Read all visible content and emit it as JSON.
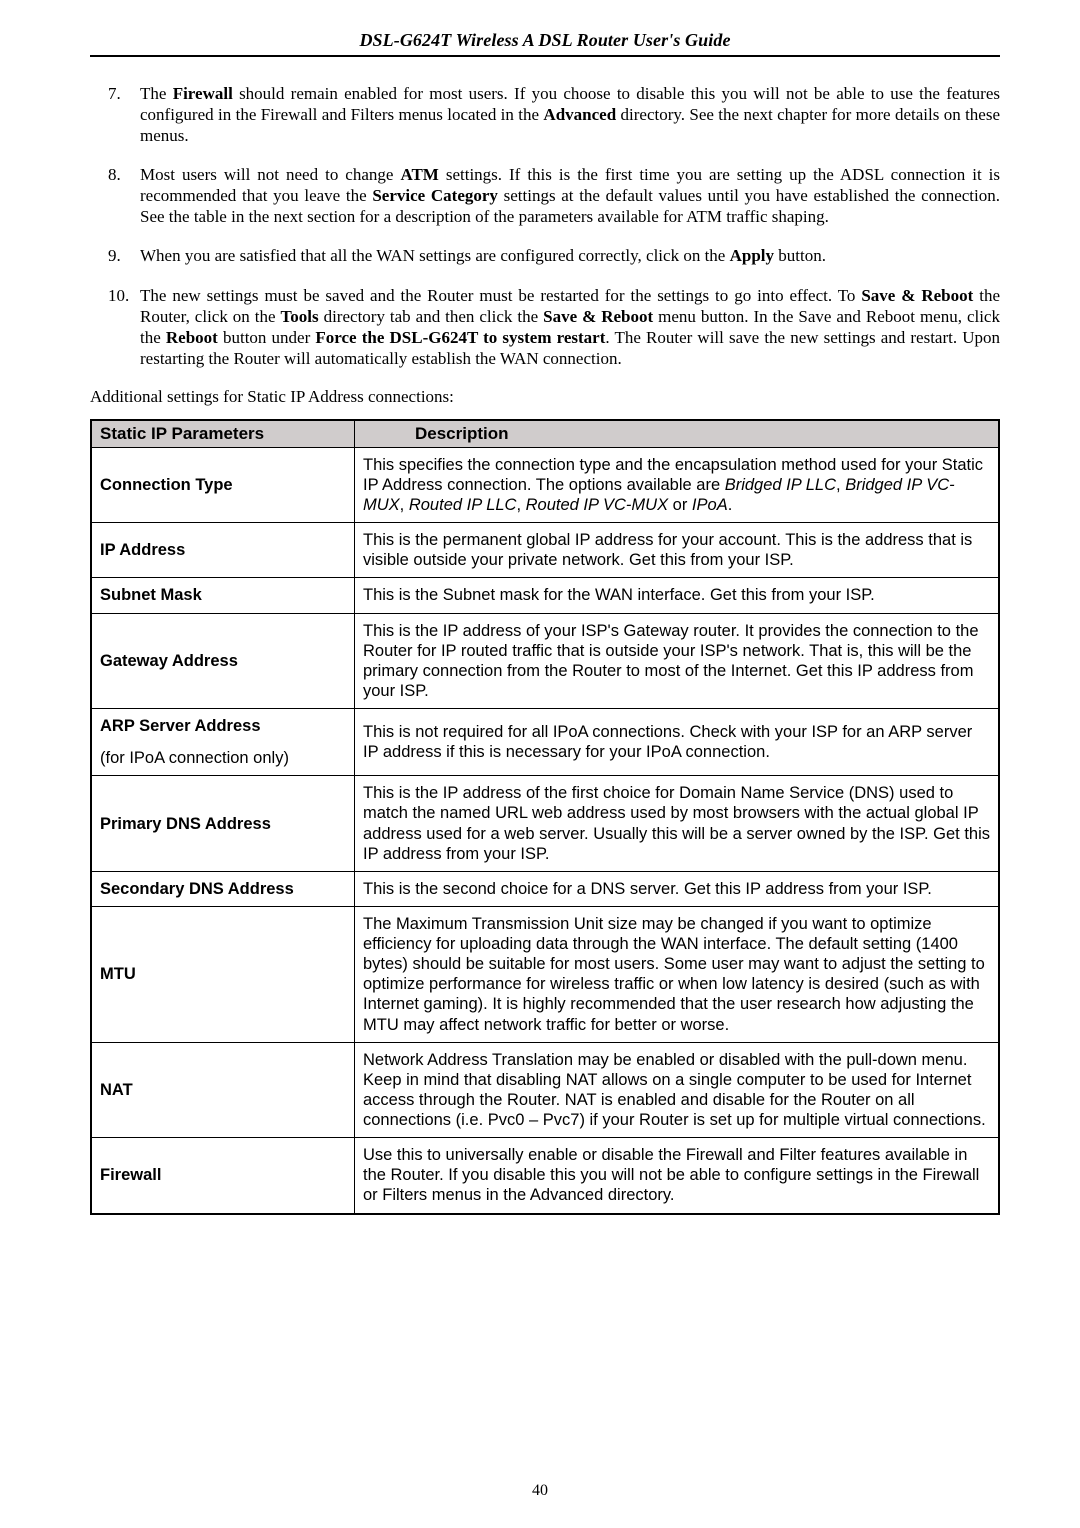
{
  "header": {
    "title": "DSL-G624T Wireless A DSL Router User's Guide"
  },
  "list": {
    "items": [
      {
        "html": "The <b>Firewall</b> should remain enabled for most users. If you choose to disable this you will not be able to use the features configured in the Firewall and Filters menus located in the <b>Advanced</b> directory. See the next chapter for more details on these menus."
      },
      {
        "html": "Most users will not need to change <b>ATM</b> settings. If this is the first time you are setting up the ADSL connection it is recommended that you leave the <b>Service Category</b> settings at the default values until you have established the connection. See the table in the next section for a description of the parameters available for ATM traffic shaping."
      },
      {
        "html": "When you are satisfied that all the WAN settings are configured correctly, click on the <b>Apply</b> button."
      },
      {
        "html": "The new settings must be saved and the Router must be restarted for the settings to go into effect. To <b>Save &amp; Reboot</b> the Router, click on the <b>Tools</b> directory tab and then click the <b>Save &amp; Reboot</b> menu button. In the Save and Reboot menu, click the <b>Reboot</b> button under <b>Force the DSL-G624T to system restart</b>. The Router will save the new settings and restart. Upon restarting the Router will automatically establish the WAN connection."
      }
    ]
  },
  "intro": "Additional settings for Static IP Address connections:",
  "table": {
    "header": {
      "c1": "Static IP Parameters",
      "c2": "Description"
    },
    "rows": [
      {
        "label": "Connection Type",
        "desc_html": "This specifies the connection type and the encapsulation method used for your Static IP Address connection. The options available are <span class='ital'>Bridged IP LLC</span>, <span class='ital'>Bridged IP VC-MUX</span>, <span class='ital'>Routed IP LLC</span>, <span class='ital'>Routed IP VC-MUX</span> or <span class='ital'>IPoA</span>."
      },
      {
        "label": "IP Address",
        "desc_html": "This is the permanent global IP address for your account. This is the address that is visible outside your private network. Get this from your ISP."
      },
      {
        "label": "Subnet Mask",
        "desc_html": "This is the Subnet mask for the WAN interface. Get this from your ISP."
      },
      {
        "label": "Gateway Address",
        "desc_html": "This is the IP address of your ISP's Gateway router. It provides the connection to the Router for IP routed traffic that is outside your ISP's network. That is, this will be the primary connection from the Router to most of the Internet. Get this IP address from your ISP."
      },
      {
        "label_html": "<span>ARP Server Address</span><span class='sub'>(for IPoA connection only)</span>",
        "desc_html": "This is not required for all IPoA connections. Check with your ISP for an ARP server IP address if this is necessary for your IPoA connection."
      },
      {
        "label": "Primary DNS Address",
        "desc_html": "This is the IP address of the first choice for Domain Name Service (DNS) used to match the named URL web address used by most browsers with the actual global IP address used for a web server. Usually this will be a server owned by the ISP. Get this IP address from your ISP."
      },
      {
        "label": "Secondary DNS Address",
        "desc_html": "This is the second choice for a DNS server. Get this IP address from your ISP."
      },
      {
        "label": "MTU",
        "desc_html": "The Maximum Transmission Unit size may be changed if you want to optimize efficiency for uploading data through the WAN interface. The default setting (1400 bytes) should be suitable for most users. Some user may want to adjust the setting to optimize performance for wireless traffic or when low latency is desired (such as with Internet gaming). It is highly recommended that the user research how adjusting the MTU may affect network traffic for better or worse."
      },
      {
        "label": "NAT",
        "desc_html": "Network Address Translation may be enabled or disabled with the pull-down menu. Keep in mind that disabling NAT allows on a single computer to be used for Internet access through the Router. NAT is enabled and disable for the Router on all connections (i.e. Pvc0 – Pvc7) if your Router is set up for multiple virtual connections."
      },
      {
        "label": "Firewall",
        "desc_html": "Use this to universally enable or disable the Firewall and Filter features available in the Router. If you disable this you will not be able to configure settings in the Firewall or Filters menus in the Advanced directory."
      }
    ]
  },
  "page_number": "40"
}
